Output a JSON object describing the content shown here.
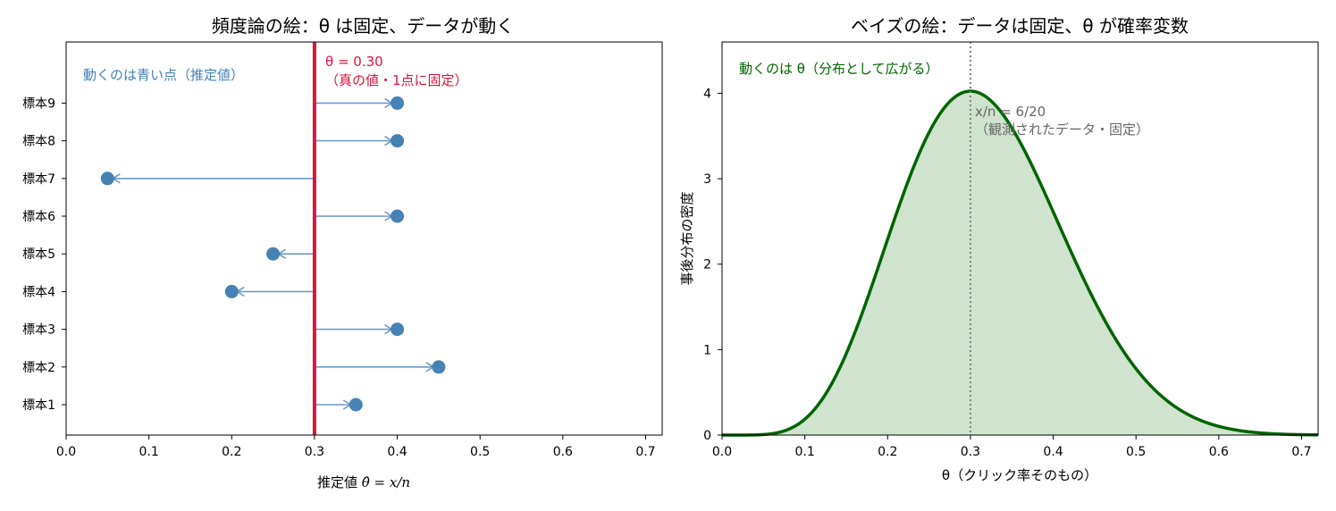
{
  "chart_data": [
    {
      "type": "scatter",
      "title": "頻度論の絵：θ は固定、データが動く",
      "xlabel": "推定値 θ̂ = x/n",
      "xlabel_prefix": "推定値 ",
      "xlabel_math": "θ̂ = x/n",
      "ylabel": "",
      "xlim": [
        0.0,
        0.72
      ],
      "x_ticks": [
        "0.0",
        "0.1",
        "0.2",
        "0.3",
        "0.4",
        "0.5",
        "0.6",
        "0.7"
      ],
      "x_tick_values": [
        0.0,
        0.1,
        0.2,
        0.3,
        0.4,
        0.5,
        0.6,
        0.7
      ],
      "grid": false,
      "true_theta": 0.3,
      "vline_label_1": "θ = 0.30",
      "vline_label_2": "（真の値・1点に固定）",
      "annotation": "動くのは青い点（推定値）",
      "categories": [
        "標本1",
        "標本2",
        "標本3",
        "標本4",
        "標本5",
        "標本6",
        "標本7",
        "標本8",
        "標本9"
      ],
      "values": [
        0.35,
        0.45,
        0.4,
        0.2,
        0.25,
        0.4,
        0.05,
        0.4,
        0.4
      ]
    },
    {
      "type": "area",
      "title": "ベイズの絵：データは固定、θ が確率変数",
      "xlabel": "θ（クリック率そのもの）",
      "ylabel": "事後分布の密度",
      "xlim": [
        0.0,
        0.72
      ],
      "ylim": [
        0,
        4.6
      ],
      "x_ticks": [
        "0.0",
        "0.1",
        "0.2",
        "0.3",
        "0.4",
        "0.5",
        "0.6",
        "0.7"
      ],
      "x_tick_values": [
        0.0,
        0.1,
        0.2,
        0.3,
        0.4,
        0.5,
        0.6,
        0.7
      ],
      "y_ticks": [
        "0",
        "1",
        "2",
        "3",
        "4"
      ],
      "y_tick_values": [
        0,
        1,
        2,
        3,
        4
      ],
      "grid": false,
      "distribution": "beta",
      "alpha": 7,
      "beta": 15,
      "observed": 0.3,
      "vline_label_1": "x/n = 6/20",
      "vline_label_2": "（観測されたデータ・固定）",
      "annotation": "動くのは θ（分布として広がる）"
    }
  ],
  "colors": {
    "dots": "#4682b4",
    "arrows": "#6f9bc4",
    "true_line": "#dc143c",
    "curve": "#006400",
    "fill": "#cfe3cf",
    "observed_line": "#808080",
    "observed_text": "#666666"
  }
}
